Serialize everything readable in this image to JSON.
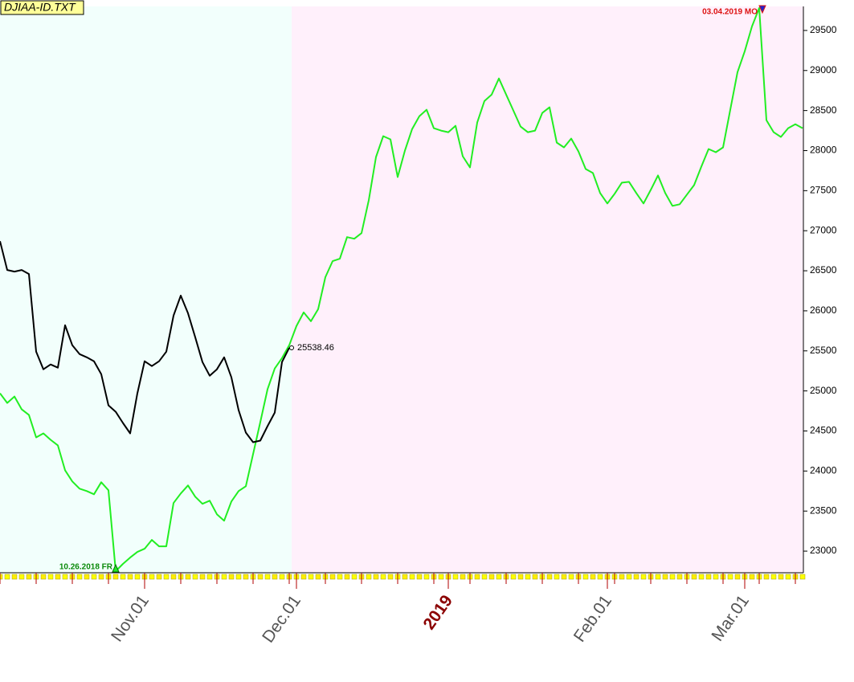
{
  "chart_data": {
    "type": "line",
    "title": "DJIAA-ID.TXT",
    "annotations": [
      "10.26.2018 FR",
      "03.04.2019 MO"
    ],
    "categories": [
      null,
      null,
      null,
      null,
      null,
      null,
      null,
      null,
      null,
      null,
      null,
      null,
      null,
      null,
      null,
      null,
      null,
      null,
      null,
      null,
      "Nov.01",
      null,
      null,
      null,
      null,
      null,
      null,
      null,
      null,
      null,
      null,
      null,
      null,
      null,
      null,
      null,
      null,
      null,
      null,
      null,
      null,
      "Dec.01",
      null,
      null,
      null,
      null,
      null,
      null,
      null,
      null,
      null,
      null,
      null,
      null,
      null,
      null,
      null,
      null,
      null,
      null,
      null,
      null,
      "2019",
      null,
      null,
      null,
      null,
      null,
      null,
      null,
      null,
      null,
      null,
      null,
      null,
      null,
      null,
      null,
      null,
      null,
      null,
      null,
      null,
      null,
      "Feb.01",
      null,
      null,
      null,
      null,
      null,
      null,
      null,
      null,
      null,
      null,
      null,
      null,
      null,
      null,
      null,
      null,
      null,
      null,
      "Mar.01",
      null,
      null,
      null,
      null,
      null,
      null,
      null,
      null
    ],
    "series": [
      {
        "color": "#22ee22",
        "values": [
          24970,
          24850,
          24930,
          24770,
          24700,
          24420,
          24470,
          24390,
          24320,
          24010,
          23870,
          23780,
          23750,
          23710,
          23860,
          23760,
          22750,
          22840,
          22920,
          22990,
          23030,
          23140,
          23060,
          23060,
          23600,
          23720,
          23820,
          23680,
          23590,
          23630,
          23460,
          23380,
          23620,
          23750,
          23810,
          24210,
          24610,
          25020,
          25280,
          25410,
          25570,
          25810,
          25980,
          25870,
          26020,
          26420,
          26620,
          26650,
          26920,
          26900,
          26970,
          27380,
          27920,
          28180,
          28140,
          27670,
          28000,
          28270,
          28430,
          28510,
          28280,
          28250,
          28230,
          28310,
          27930,
          27790,
          28350,
          28620,
          28700,
          28900,
          28700,
          28500,
          28300,
          28230,
          28250,
          28470,
          28540,
          28100,
          28040,
          28150,
          27990,
          27770,
          27720,
          27470,
          27340,
          27460,
          27600,
          27610,
          27470,
          27340,
          27510,
          27690,
          27470,
          27310,
          27330,
          27450,
          27570,
          27800,
          28020,
          27980,
          28040,
          28510,
          28980,
          29240,
          29550,
          29780,
          28380,
          28230,
          28170,
          28280,
          28330,
          28280
        ]
      },
      {
        "color": "#000000",
        "values": [
          26870,
          26510,
          26490,
          26510,
          26460,
          25490,
          25270,
          25330,
          25290,
          25820,
          25570,
          25460,
          25420,
          25370,
          25210,
          24820,
          24740,
          24600,
          24470,
          24970,
          25370,
          25310,
          25370,
          25490,
          25940,
          26190,
          25970,
          25670,
          25360,
          25190,
          25270,
          25420,
          25170,
          24760,
          24480,
          24360,
          24380,
          24560,
          24730,
          25360,
          25538.46,
          null,
          null,
          null,
          null,
          null,
          null,
          null,
          null,
          null,
          null,
          null,
          null,
          null,
          null,
          null,
          null,
          null,
          null,
          null,
          null,
          null,
          null,
          null,
          null,
          null,
          null,
          null,
          null,
          null,
          null,
          null,
          null,
          null,
          null,
          null,
          null,
          null,
          null,
          null,
          null,
          null,
          null,
          null,
          null,
          null,
          null,
          null,
          null,
          null,
          null,
          null,
          null,
          null,
          null,
          null,
          null,
          null,
          null,
          null,
          null,
          null,
          null,
          null,
          null,
          null,
          null,
          null,
          null,
          null,
          null,
          null
        ]
      }
    ],
    "ylim": [
      22730,
      29800
    ],
    "yticks": [
      23000,
      23500,
      24000,
      24500,
      25000,
      25500,
      26000,
      26500,
      27000,
      27500,
      28000,
      28500,
      29000,
      29500
    ],
    "grid": false
  }
}
